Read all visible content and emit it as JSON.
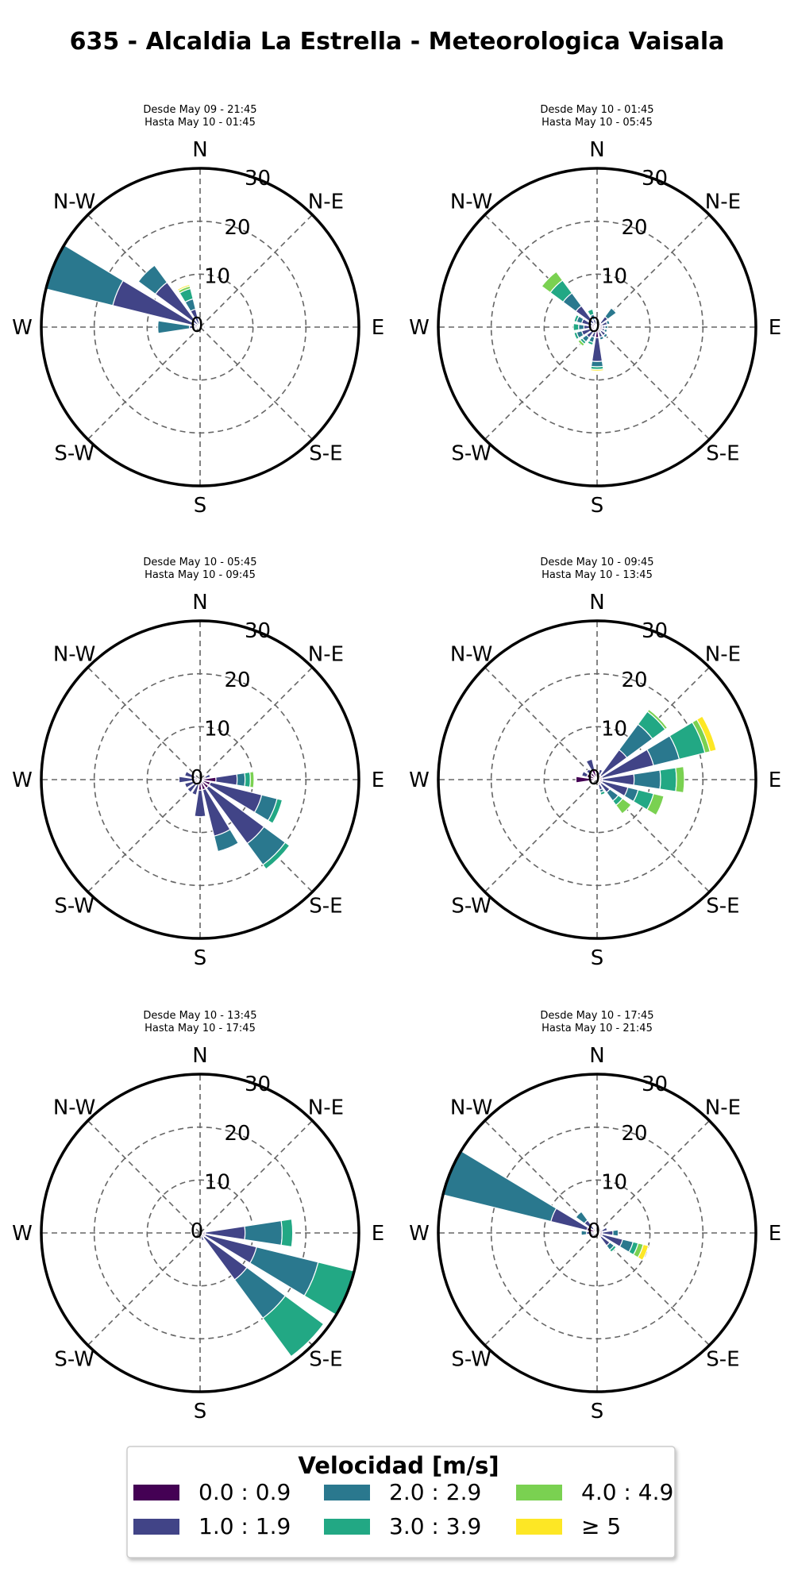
{
  "title": "635 - Alcaldia La Estrella - Meteorologica Vaisala",
  "chart_data": [
    {
      "type": "windrose",
      "subtitle_line1": "Desde May 09 - 21:45",
      "subtitle_line2": "Hasta May 10 - 01:45",
      "direction_labels": [
        "N",
        "N-E",
        "E",
        "S-E",
        "S",
        "S-W",
        "W",
        "N-W"
      ],
      "radial_ticks": [
        "0",
        "10",
        "20",
        "30"
      ],
      "rmax": 30,
      "bins": [
        "0.0 : 0.9",
        "1.0 : 1.9",
        "2.0 : 2.9",
        "3.0 : 3.9",
        "4.0 : 4.9",
        "≥ 5"
      ],
      "sectors": [
        {
          "dir": 270,
          "values": [
            1.0,
            1.0,
            6.0,
            0,
            0,
            0
          ]
        },
        {
          "dir": 292.5,
          "values": [
            1.0,
            16.0,
            13.0,
            3.0,
            0,
            0
          ]
        },
        {
          "dir": 315,
          "values": [
            0.5,
            10.0,
            4.0,
            0,
            0,
            0
          ]
        },
        {
          "dir": 337.5,
          "values": [
            0.5,
            3.0,
            2.0,
            2.0,
            0.5,
            0.3
          ]
        },
        {
          "dir": 0,
          "values": [
            0.5,
            0.5,
            0,
            0,
            0,
            0
          ]
        },
        {
          "dir": 90,
          "values": [
            0.5,
            0.5,
            0,
            0,
            0,
            0
          ]
        },
        {
          "dir": 247.5,
          "values": [
            0.5,
            0,
            0,
            0,
            0,
            0
          ]
        },
        {
          "dir": 202.5,
          "values": [
            0.5,
            0,
            0,
            0,
            0,
            0
          ]
        }
      ]
    },
    {
      "type": "windrose",
      "subtitle_line1": "Desde May 10 - 01:45",
      "subtitle_line2": "Hasta May 10 - 05:45",
      "direction_labels": [
        "N",
        "N-E",
        "E",
        "S-E",
        "S",
        "S-W",
        "W",
        "N-W"
      ],
      "radial_ticks": [
        "0",
        "10",
        "20",
        "30"
      ],
      "rmax": 30,
      "bins": [
        "0.0 : 0.9",
        "1.0 : 1.9",
        "2.0 : 2.9",
        "3.0 : 3.9",
        "4.0 : 4.9",
        "≥ 5"
      ],
      "sectors": [
        {
          "dir": 315,
          "values": [
            1.0,
            4.0,
            3.0,
            3.0,
            2.0,
            0
          ]
        },
        {
          "dir": 337.5,
          "values": [
            0.5,
            1.0,
            1.0,
            1.0,
            0,
            0
          ]
        },
        {
          "dir": 45,
          "values": [
            1.0,
            1.5,
            2.0,
            0,
            0,
            0
          ]
        },
        {
          "dir": 67.5,
          "values": [
            1.0,
            1.0,
            0.5,
            0,
            0,
            0
          ]
        },
        {
          "dir": 180,
          "values": [
            2.0,
            4.5,
            1.0,
            0.5,
            0,
            0.3
          ]
        },
        {
          "dir": 157.5,
          "values": [
            1.0,
            1.0,
            0.5,
            0,
            0,
            0
          ]
        },
        {
          "dir": 202.5,
          "values": [
            1.0,
            1.0,
            1.0,
            0.5,
            0,
            0
          ]
        },
        {
          "dir": 225,
          "values": [
            1.0,
            1.5,
            1.0,
            0.5,
            0.5,
            0
          ]
        },
        {
          "dir": 247.5,
          "values": [
            1.0,
            2.0,
            1.0,
            0.5,
            0,
            0
          ]
        },
        {
          "dir": 270,
          "values": [
            1.0,
            1.5,
            1.0,
            1.0,
            0,
            0
          ]
        },
        {
          "dir": 292.5,
          "values": [
            1.0,
            2.0,
            1.0,
            0.5,
            0,
            0
          ]
        },
        {
          "dir": 135,
          "values": [
            1.0,
            1.0,
            0.5,
            0,
            0,
            0
          ]
        },
        {
          "dir": 112.5,
          "values": [
            1.0,
            0.5,
            0.5,
            0,
            0,
            0
          ]
        },
        {
          "dir": 90,
          "values": [
            1.0,
            0.5,
            0.5,
            0,
            0,
            0
          ]
        },
        {
          "dir": 22.5,
          "values": [
            0.5,
            0.5,
            0,
            0,
            0,
            0
          ]
        }
      ]
    },
    {
      "type": "windrose",
      "subtitle_line1": "Desde May 10 - 05:45",
      "subtitle_line2": "Hasta May 10 - 09:45",
      "direction_labels": [
        "N",
        "N-E",
        "E",
        "S-E",
        "S",
        "S-W",
        "W",
        "N-W"
      ],
      "radial_ticks": [
        "0",
        "10",
        "20",
        "30"
      ],
      "rmax": 30,
      "bins": [
        "0.0 : 0.9",
        "1.0 : 1.9",
        "2.0 : 2.9",
        "3.0 : 3.9",
        "4.0 : 4.9",
        "≥ 5"
      ],
      "sectors": [
        {
          "dir": 90,
          "values": [
            3.0,
            4.0,
            1.5,
            1.0,
            0.7,
            0
          ]
        },
        {
          "dir": 112.5,
          "values": [
            2.0,
            10.0,
            3.0,
            1.0,
            0,
            0
          ]
        },
        {
          "dir": 135,
          "values": [
            2.0,
            13.0,
            5.0,
            1.0,
            0,
            0
          ]
        },
        {
          "dir": 157.5,
          "values": [
            2.0,
            9.0,
            3.0,
            0,
            0,
            0
          ]
        },
        {
          "dir": 180,
          "values": [
            2.0,
            5.0,
            0,
            0,
            0,
            0
          ]
        },
        {
          "dir": 202.5,
          "values": [
            1.0,
            2.0,
            0,
            0,
            0,
            0
          ]
        },
        {
          "dir": 225,
          "values": [
            1.0,
            2.0,
            0,
            0,
            0,
            0
          ]
        },
        {
          "dir": 247.5,
          "values": [
            1.0,
            2.0,
            0,
            0,
            0,
            0
          ]
        },
        {
          "dir": 270,
          "values": [
            1.0,
            3.0,
            0,
            0,
            0,
            0
          ]
        },
        {
          "dir": 292.5,
          "values": [
            1.0,
            2.0,
            0,
            0,
            0,
            0
          ]
        },
        {
          "dir": 67.5,
          "values": [
            1.0,
            1.0,
            0,
            0,
            0,
            0
          ]
        }
      ]
    },
    {
      "type": "windrose",
      "subtitle_line1": "Desde May 10 - 09:45",
      "subtitle_line2": "Hasta May 10 - 13:45",
      "direction_labels": [
        "N",
        "N-E",
        "E",
        "S-E",
        "S",
        "S-W",
        "W",
        "N-W"
      ],
      "radial_ticks": [
        "0",
        "10",
        "20",
        "30"
      ],
      "rmax": 30,
      "bins": [
        "0.0 : 0.9",
        "1.0 : 1.9",
        "2.0 : 2.9",
        "3.0 : 3.9",
        "4.0 : 4.9",
        "≥ 5"
      ],
      "sectors": [
        {
          "dir": 45,
          "values": [
            1.0,
            6.0,
            6.0,
            3.0,
            0.5,
            0
          ]
        },
        {
          "dir": 67.5,
          "values": [
            1.0,
            10.0,
            5.0,
            5.0,
            1.0,
            1.2
          ]
        },
        {
          "dir": 90,
          "values": [
            1.0,
            6.0,
            5.0,
            3.0,
            1.5,
            0
          ]
        },
        {
          "dir": 112.5,
          "values": [
            1.0,
            5.0,
            2.0,
            3.0,
            2.0,
            0
          ]
        },
        {
          "dir": 135,
          "values": [
            1.0,
            2.0,
            2.0,
            1.0,
            2.0,
            0
          ]
        },
        {
          "dir": 157.5,
          "values": [
            1.0,
            1.0,
            0.5,
            0.5,
            0,
            0
          ]
        },
        {
          "dir": 270,
          "values": [
            4.0,
            0,
            0,
            0,
            0,
            0
          ]
        },
        {
          "dir": 292.5,
          "values": [
            2.0,
            1.0,
            0,
            0,
            0,
            0
          ]
        },
        {
          "dir": 315,
          "values": [
            1.5,
            1.0,
            0,
            0,
            0,
            0
          ]
        },
        {
          "dir": 337.5,
          "values": [
            2.0,
            2.0,
            0,
            0,
            0,
            0
          ]
        },
        {
          "dir": 22.5,
          "values": [
            1.0,
            1.0,
            0,
            0,
            0,
            0
          ]
        }
      ]
    },
    {
      "type": "windrose",
      "subtitle_line1": "Desde May 10 - 13:45",
      "subtitle_line2": "Hasta May 10 - 17:45",
      "direction_labels": [
        "N",
        "N-E",
        "E",
        "S-E",
        "S",
        "S-W",
        "W",
        "N-W"
      ],
      "radial_ticks": [
        "0",
        "10",
        "20",
        "30"
      ],
      "rmax": 30,
      "bins": [
        "0.0 : 0.9",
        "1.0 : 1.9",
        "2.0 : 2.9",
        "3.0 : 3.9",
        "4.0 : 4.9",
        "≥ 5"
      ],
      "sectors": [
        {
          "dir": 90,
          "values": [
            1.0,
            7.5,
            7.0,
            2.0,
            0,
            0
          ]
        },
        {
          "dir": 112.5,
          "values": [
            1.0,
            10.0,
            12.0,
            7.0,
            0,
            0
          ]
        },
        {
          "dir": 135,
          "values": [
            1.0,
            10.0,
            9.0,
            9.0,
            0,
            0
          ]
        },
        {
          "dir": 157.5,
          "values": [
            0.5,
            1.0,
            0,
            0,
            0,
            0
          ]
        }
      ]
    },
    {
      "type": "windrose",
      "subtitle_line1": "Desde May 10 - 17:45",
      "subtitle_line2": "Hasta May 10 - 21:45",
      "direction_labels": [
        "N",
        "N-E",
        "E",
        "S-E",
        "S",
        "S-W",
        "W",
        "N-W"
      ],
      "radial_ticks": [
        "0",
        "10",
        "20",
        "30"
      ],
      "rmax": 30,
      "bins": [
        "0.0 : 0.9",
        "1.0 : 1.9",
        "2.0 : 2.9",
        "3.0 : 3.9",
        "4.0 : 4.9",
        "≥ 5"
      ],
      "sectors": [
        {
          "dir": 292.5,
          "values": [
            2.0,
            7.0,
            23.0,
            0,
            0,
            0
          ]
        },
        {
          "dir": 315,
          "values": [
            1.0,
            2.0,
            2.0,
            0,
            0,
            0
          ]
        },
        {
          "dir": 270,
          "values": [
            1.0,
            1.0,
            1.0,
            0,
            0,
            0
          ]
        },
        {
          "dir": 112.5,
          "values": [
            1.0,
            4.0,
            2.0,
            1.0,
            1.0,
            1.0
          ]
        },
        {
          "dir": 135,
          "values": [
            1.0,
            2.0,
            1.0,
            0.5,
            0,
            0
          ]
        },
        {
          "dir": 90,
          "values": [
            1.0,
            2.0,
            1.0,
            0,
            0,
            0
          ]
        },
        {
          "dir": 67.5,
          "values": [
            1.0,
            1.0,
            0,
            0,
            0,
            0
          ]
        },
        {
          "dir": 45,
          "values": [
            0.5,
            0.5,
            0,
            0,
            0,
            0
          ]
        },
        {
          "dir": 247.5,
          "values": [
            0.5,
            1.0,
            0,
            0,
            0,
            0
          ]
        }
      ]
    }
  ],
  "legend": {
    "title": "Velocidad [m/s]",
    "items": [
      {
        "label": "0.0 : 0.9",
        "color": "#440154"
      },
      {
        "label": "1.0 : 1.9",
        "color": "#414487"
      },
      {
        "label": "2.0 : 2.9",
        "color": "#2a788e"
      },
      {
        "label": "3.0 : 3.9",
        "color": "#22a884"
      },
      {
        "label": "4.0 : 4.9",
        "color": "#7ad151"
      },
      {
        "label": "≥ 5",
        "color": "#fde725"
      }
    ]
  }
}
